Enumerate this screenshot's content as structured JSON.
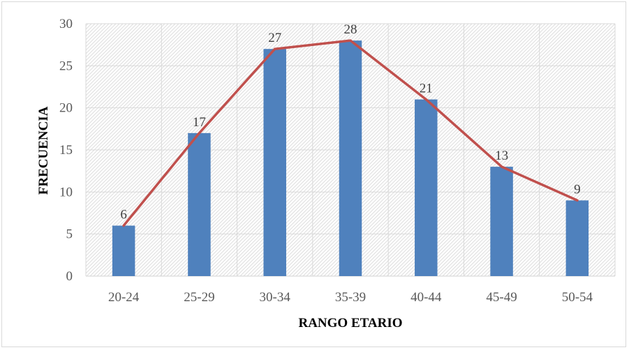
{
  "chart_data": {
    "type": "bar",
    "categories": [
      "20-24",
      "25-29",
      "30-34",
      "35-39",
      "40-44",
      "45-49",
      "50-54"
    ],
    "series": [
      {
        "values": [
          6,
          17,
          27,
          28,
          21,
          13,
          9
        ]
      }
    ],
    "overlay_line": true,
    "xlabel": "RANGO ETARIO",
    "ylabel": "FRECUENCIA",
    "ylim": [
      0,
      30
    ],
    "yticks": [
      0,
      5,
      10,
      15,
      20,
      25,
      30
    ],
    "grid": true,
    "legend": "none",
    "colors": {
      "bar": "#4f81bd",
      "line": "#c0504d"
    }
  }
}
